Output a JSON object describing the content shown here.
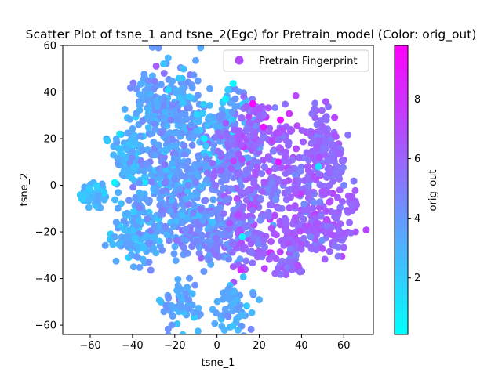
{
  "chart_data": {
    "type": "scatter",
    "title": "Scatter Plot of tsne_1 and tsne_2(Egc) for Pretrain_model (Color: orig_out)",
    "xlabel": "tsne_1",
    "ylabel": "tsne_2",
    "xlim": [
      -73,
      74
    ],
    "ylim": [
      -64,
      60
    ],
    "xticks": [
      -60,
      -40,
      -20,
      0,
      20,
      40,
      60
    ],
    "yticks": [
      -60,
      -40,
      -20,
      0,
      20,
      40,
      60
    ],
    "grid": false,
    "legend": {
      "position": "top-right",
      "entries": [
        "Pretrain Fingerprint"
      ],
      "marker_color": "#b04cf7"
    },
    "colorbar": {
      "label": "orig_out",
      "colormap": "cool",
      "range": [
        0.1,
        9.8
      ],
      "ticks": [
        2,
        4,
        6,
        8
      ],
      "color_low": "#00ffff",
      "color_high": "#ff00ff"
    },
    "series": [
      {
        "name": "Pretrain Fingerprint",
        "clusters": [
          {
            "cx": -58,
            "cy": -4,
            "sx": 3.5,
            "sy": 3,
            "n": 50,
            "c": 2.6,
            "cs": 0.6
          },
          {
            "cx": -42,
            "cy": 12,
            "sx": 4,
            "sy": 7,
            "n": 80,
            "c": 3.0,
            "cs": 0.6
          },
          {
            "cx": -38,
            "cy": -20,
            "sx": 6,
            "sy": 7,
            "n": 150,
            "c": 3.0,
            "cs": 0.6
          },
          {
            "cx": -30,
            "cy": 35,
            "sx": 6,
            "sy": 6,
            "n": 90,
            "c": 3.6,
            "cs": 0.7
          },
          {
            "cx": -28,
            "cy": 5,
            "sx": 6,
            "sy": 7,
            "n": 90,
            "c": 3.6,
            "cs": 0.7
          },
          {
            "cx": -18,
            "cy": 28,
            "sx": 9,
            "sy": 14,
            "n": 180,
            "c": 3.6,
            "cs": 0.8
          },
          {
            "cx": -15,
            "cy": -15,
            "sx": 8,
            "sy": 9,
            "n": 160,
            "c": 4.2,
            "cs": 0.8
          },
          {
            "cx": -10,
            "cy": 8,
            "sx": 8,
            "sy": 9,
            "n": 110,
            "c": 4.0,
            "cs": 0.8
          },
          {
            "cx": 4,
            "cy": 25,
            "sx": 6,
            "sy": 9,
            "n": 100,
            "c": 3.2,
            "cs": 1.0
          },
          {
            "cx": 2,
            "cy": -20,
            "sx": 6,
            "sy": 7,
            "n": 100,
            "c": 4.4,
            "cs": 0.8
          },
          {
            "cx": 8,
            "cy": 5,
            "sx": 6,
            "sy": 10,
            "n": 110,
            "c": 5.0,
            "cs": 0.8
          },
          {
            "cx": 15,
            "cy": -18,
            "sx": 6,
            "sy": 9,
            "n": 110,
            "c": 5.8,
            "cs": 0.8
          },
          {
            "cx": 18,
            "cy": 22,
            "sx": 6,
            "sy": 9,
            "n": 110,
            "c": 5.8,
            "cs": 0.8
          },
          {
            "cx": 25,
            "cy": 0,
            "sx": 6,
            "sy": 5,
            "n": 50,
            "c": 5.6,
            "cs": 0.7
          },
          {
            "cx": 32,
            "cy": 18,
            "sx": 4,
            "sy": 7,
            "n": 40,
            "c": 6.2,
            "cs": 0.7
          },
          {
            "cx": 35,
            "cy": -22,
            "sx": 5,
            "sy": 6,
            "n": 70,
            "c": 6.0,
            "cs": 0.6
          },
          {
            "cx": 35,
            "cy": -35,
            "sx": 4,
            "sy": 3,
            "n": 30,
            "c": 5.8,
            "cs": 0.6
          },
          {
            "cx": 42,
            "cy": 0,
            "sx": 6,
            "sy": 7,
            "n": 80,
            "c": 5.8,
            "cs": 0.8
          },
          {
            "cx": 50,
            "cy": 18,
            "sx": 5,
            "sy": 7,
            "n": 100,
            "c": 5.8,
            "cs": 0.6
          },
          {
            "cx": 52,
            "cy": -18,
            "sx": 7,
            "sy": 7,
            "n": 120,
            "c": 6.0,
            "cs": 0.6
          },
          {
            "cx": 63,
            "cy": -8,
            "sx": 2,
            "sy": 2,
            "n": 15,
            "c": 6.2,
            "cs": 0.4
          },
          {
            "cx": 56,
            "cy": 6,
            "sx": 3,
            "sy": 3,
            "n": 25,
            "c": 5.6,
            "cs": 0.5
          },
          {
            "cx": -18,
            "cy": -51,
            "sx": 5,
            "sy": 5,
            "n": 60,
            "c": 3.4,
            "cs": 0.6
          },
          {
            "cx": 8,
            "cy": -52,
            "sx": 5,
            "sy": 5,
            "n": 60,
            "c": 3.2,
            "cs": 0.6
          }
        ],
        "highlights": [
          {
            "x": 17,
            "y": 35,
            "c": 9.6
          },
          {
            "x": 30,
            "y": 28,
            "c": 9.2
          },
          {
            "x": 29,
            "y": 10,
            "c": 8.8
          },
          {
            "x": 22,
            "y": 25,
            "c": 9.0
          },
          {
            "x": 12,
            "y": -22,
            "c": 0.6
          },
          {
            "x": -6,
            "y": 20,
            "c": 0.8
          },
          {
            "x": 48,
            "y": 8,
            "c": 1.2
          },
          {
            "x": 4,
            "y": 37,
            "c": 0.6
          },
          {
            "x": -46,
            "y": 22,
            "c": 1.4
          }
        ]
      }
    ]
  }
}
